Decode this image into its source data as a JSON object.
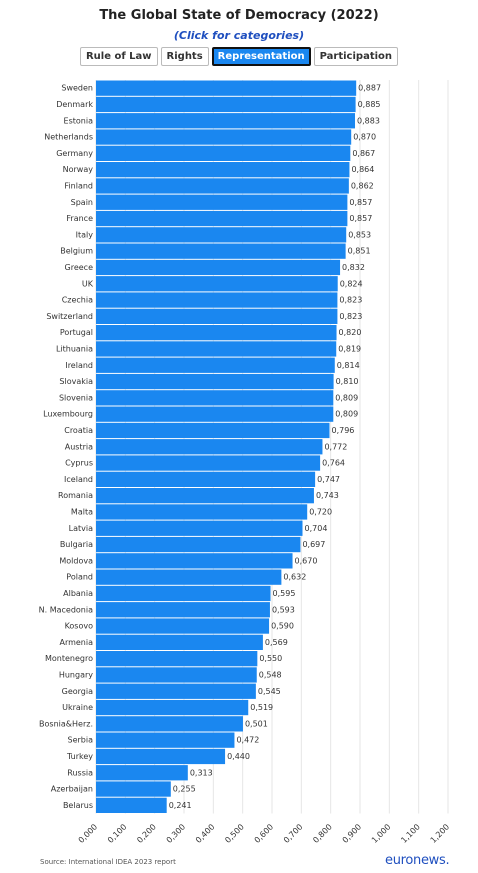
{
  "chart_data": {
    "type": "hbar",
    "title": "The Global State of Democracy (2022)",
    "subtitle": "(Click for categories)",
    "buttons": [
      "Rule of Law",
      "Rights",
      "Representation",
      "Participation"
    ],
    "selected_button": 2,
    "categories": [
      "Sweden",
      "Denmark",
      "Estonia",
      "Netherlands",
      "Germany",
      "Norway",
      "Finland",
      "Spain",
      "France",
      "Italy",
      "Belgium",
      "Greece",
      "UK",
      "Czechia",
      "Switzerland",
      "Portugal",
      "Lithuania",
      "Ireland",
      "Slovakia",
      "Slovenia",
      "Luxembourg",
      "Croatia",
      "Austria",
      "Cyprus",
      "Iceland",
      "Romania",
      "Malta",
      "Latvia",
      "Bulgaria",
      "Moldova",
      "Poland",
      "Albania",
      "N. Macedonia",
      "Kosovo",
      "Armenia",
      "Montenegro",
      "Hungary",
      "Georgia",
      "Ukraine",
      "Bosnia&Herz.",
      "Serbia",
      "Turkey",
      "Russia",
      "Azerbaijan",
      "Belarus"
    ],
    "values": [
      0.887,
      0.885,
      0.883,
      0.87,
      0.867,
      0.864,
      0.862,
      0.857,
      0.857,
      0.853,
      0.851,
      0.832,
      0.824,
      0.823,
      0.823,
      0.82,
      0.819,
      0.814,
      0.81,
      0.809,
      0.809,
      0.796,
      0.772,
      0.764,
      0.747,
      0.743,
      0.72,
      0.704,
      0.697,
      0.67,
      0.632,
      0.595,
      0.593,
      0.59,
      0.569,
      0.55,
      0.548,
      0.545,
      0.519,
      0.501,
      0.472,
      0.44,
      0.313,
      0.255,
      0.241
    ],
    "value_labels": [
      "0,887",
      "0,885",
      "0,883",
      "0,870",
      "0,867",
      "0,864",
      "0,862",
      "0,857",
      "0,857",
      "0,853",
      "0,851",
      "0,832",
      "0,824",
      "0,823",
      "0,823",
      "0,820",
      "0,819",
      "0,814",
      "0,810",
      "0,809",
      "0,809",
      "0,796",
      "0,772",
      "0,764",
      "0,747",
      "0,743",
      "0,720",
      "0,704",
      "0,697",
      "0,670",
      "0,632",
      "0,595",
      "0,593",
      "0,590",
      "0,569",
      "0,550",
      "0,548",
      "0,545",
      "0,519",
      "0,501",
      "0,472",
      "0,440",
      "0,313",
      "0,255",
      "0,241"
    ],
    "color": "#1a87f0",
    "xlim": [
      0,
      1.2
    ],
    "xticks": [
      {
        "value": 0,
        "label": "0,000"
      },
      {
        "value": 0.1,
        "label": "0,100"
      },
      {
        "value": 0.2,
        "label": "0,200"
      },
      {
        "value": 0.3,
        "label": "0,300"
      },
      {
        "value": 0.4,
        "label": "0,400"
      },
      {
        "value": 0.5,
        "label": "0,500"
      },
      {
        "value": 0.6,
        "label": "0,600"
      },
      {
        "value": 0.7,
        "label": "0,700"
      },
      {
        "value": 0.8,
        "label": "0,800"
      },
      {
        "value": 0.9,
        "label": "0,900"
      },
      {
        "value": 1.0,
        "label": "1,000"
      },
      {
        "value": 1.1,
        "label": "1,100"
      },
      {
        "value": 1.2,
        "label": "1,200"
      }
    ],
    "grid": true,
    "source": "Source: International IDEA 2023 report",
    "logo": "euronews."
  }
}
